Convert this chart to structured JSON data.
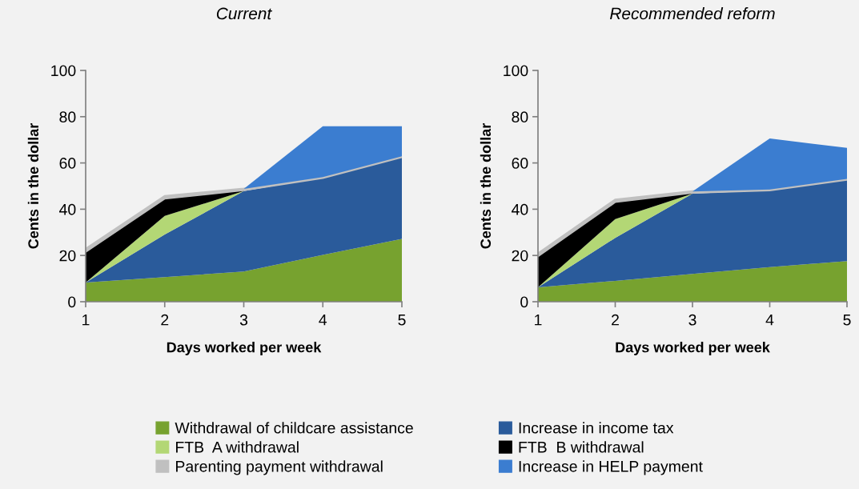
{
  "chart_data": [
    {
      "type": "area",
      "stacked": true,
      "title": "Current",
      "xlabel": "Days worked per week",
      "ylabel": "Cents in the dollar",
      "x": [
        1,
        2,
        3,
        4,
        5
      ],
      "xlim": [
        1,
        5
      ],
      "xticks": [
        1,
        2,
        3,
        4,
        5
      ],
      "ylim": [
        0,
        100
      ],
      "yticks": [
        0,
        20,
        40,
        60,
        80,
        100
      ],
      "grid": false,
      "legend": "bottom",
      "series": [
        {
          "name": "Withdrawal of childcare assistance",
          "color": "#77a22f",
          "values": [
            8.3,
            10.6,
            13.1,
            20.2,
            27.2
          ]
        },
        {
          "name": "Increase in income tax",
          "color": "#2a5b9b",
          "values": [
            0,
            18.5,
            34.7,
            33.4,
            35.4
          ]
        },
        {
          "name": "FTB  A withdrawal",
          "color": "#b3d775",
          "values": [
            0,
            8.0,
            0,
            null,
            null
          ]
        },
        {
          "name": "FTB  B withdrawal",
          "color": "#000000",
          "values": [
            13.4,
            7.6,
            0.5,
            null,
            null
          ]
        },
        {
          "name": "Parenting payment withdrawal",
          "color": "#c0c0c0",
          "values": [
            1.1,
            0.9,
            0.5,
            0.3,
            0.3
          ]
        },
        {
          "name": "Increase in HELP payment",
          "color": "#3b7dd0",
          "values": [
            null,
            null,
            0,
            22.0,
            13.0
          ]
        }
      ]
    },
    {
      "type": "area",
      "stacked": true,
      "title": "Recommended reform",
      "xlabel": "Days worked per week",
      "ylabel": "Cents in the dollar",
      "x": [
        1,
        2,
        3,
        4,
        5
      ],
      "xlim": [
        1,
        5
      ],
      "xticks": [
        1,
        2,
        3,
        4,
        5
      ],
      "ylim": [
        0,
        100
      ],
      "yticks": [
        0,
        20,
        40,
        60,
        80,
        100
      ],
      "grid": false,
      "series": [
        {
          "color": "#77a22f",
          "values": [
            6.2,
            9.0,
            12.0,
            15.0,
            17.6
          ]
        },
        {
          "color": "#2a5b9b",
          "values": [
            0,
            18.6,
            34.7,
            33.2,
            35.2
          ]
        },
        {
          "color": "#b3d775",
          "values": [
            0,
            8.1,
            0,
            null,
            null
          ]
        },
        {
          "color": "#000000",
          "values": [
            13.6,
            7.5,
            0.5,
            null,
            null
          ]
        },
        {
          "color": "#c0c0c0",
          "values": [
            1.0,
            0.9,
            0.5,
            0.3,
            0.3
          ]
        },
        {
          "color": "#3b7dd0",
          "values": [
            null,
            null,
            0,
            22.1,
            13.4
          ]
        }
      ]
    }
  ]
}
